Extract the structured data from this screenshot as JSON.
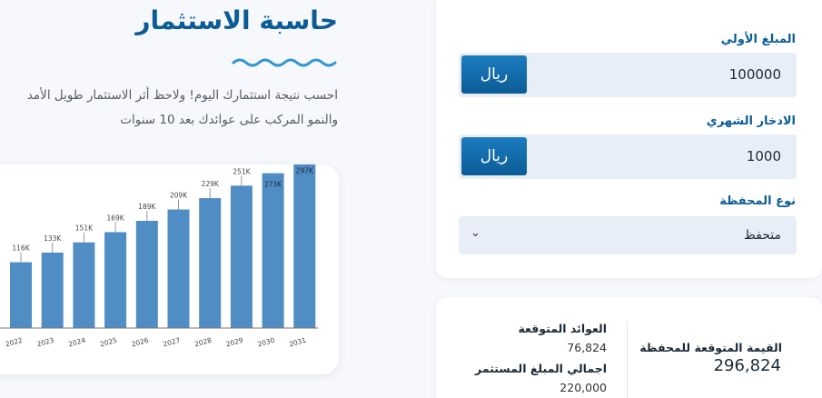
{
  "header": {
    "title": "حاسبة الاستثمار",
    "desc_line1": "احسب نتيجة استثمارك اليوم! ولاحظ أثر الاستثمار طويل الأمد",
    "desc_line2": "والنمو المركب على عوائدك بعد 10 سنوات"
  },
  "form": {
    "initial_label": "المبلغ الأولي",
    "initial_value": "100000",
    "monthly_label": "الادخار الشهري",
    "monthly_value": "1000",
    "currency_label": "ريال",
    "portfolio_label": "نوع المحفظة",
    "portfolio_value": "متحفظ",
    "chevron_icon": "chevron-down-icon"
  },
  "results": {
    "expected_returns_label": "العوائد المتوقعة",
    "expected_returns_value": "76,824",
    "total_invested_label": "اجمالي المبلغ المستثمر",
    "total_invested_value": "220,000",
    "portfolio_value_label": "القيمة المتوقعة للمحفظة",
    "portfolio_value_value": "296,824"
  },
  "colors": {
    "accent": "#0b5c96",
    "bar": "#4f8dc4",
    "field": "#e8eef8"
  },
  "chart_data": {
    "type": "bar",
    "categories": [
      "2022",
      "2023",
      "2024",
      "2025",
      "2026",
      "2027",
      "2028",
      "2029",
      "2030",
      "2031"
    ],
    "values": [
      116,
      133,
      151,
      169,
      189,
      209,
      229,
      251,
      273,
      297
    ],
    "labels": [
      "116K",
      "133K",
      "151K",
      "169K",
      "189K",
      "209K",
      "229K",
      "251K",
      "273K",
      "297K"
    ],
    "title": "",
    "xlabel": "",
    "ylabel": ""
  }
}
